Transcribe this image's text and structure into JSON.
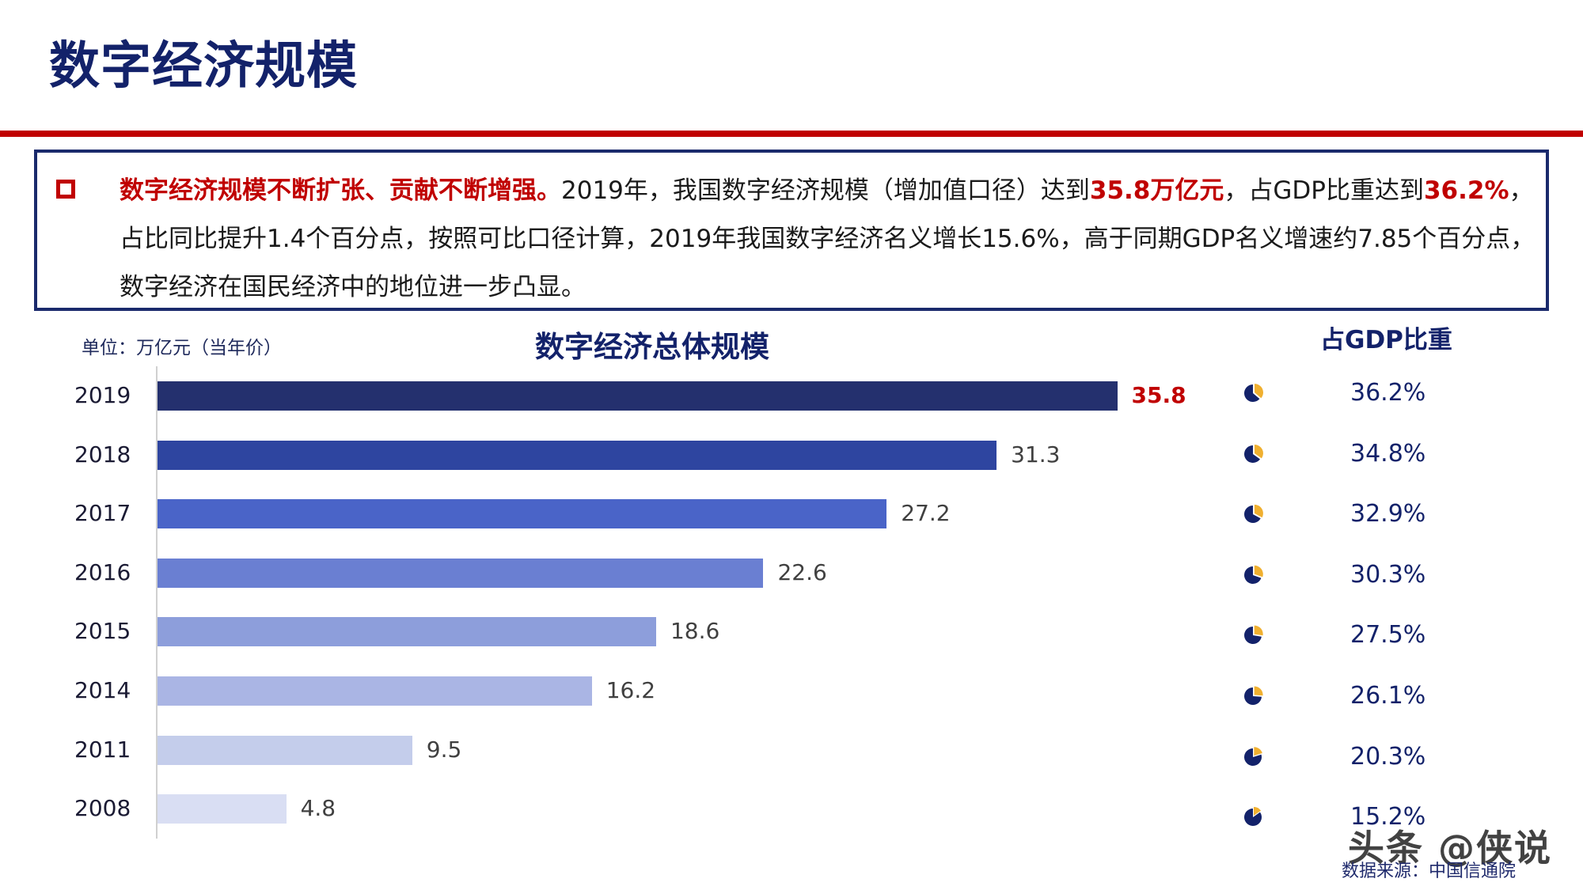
{
  "slide": {
    "title": "数字经济规模",
    "rule_color": "#c00000",
    "accent_navy": "#13226a"
  },
  "summary": {
    "bullet_icon": "hollow-square-bullet",
    "parts": [
      {
        "text": "数字经济规模不断扩张、贡献不断增强。",
        "highlight": true
      },
      {
        "text": "2019年，我国数字经济规模（增加值口径）达到",
        "highlight": false
      },
      {
        "text": "35.8万亿元",
        "highlight": true
      },
      {
        "text": "，占GDP比重达到",
        "highlight": false
      },
      {
        "text": "36.2%",
        "highlight": true
      },
      {
        "text": "，占比同比提升1.4个百分点，按照可比口径计算，2019年我国数字经济名义增长15.6%，高于同期GDP名义增速约7.85个百分点，数字经济在国民经济中的地位进一步凸显。",
        "highlight": false
      }
    ]
  },
  "chart": {
    "unit_label": "单位：万亿元（当年价）",
    "title": "数字经济总体规模",
    "gdp_share_header": "占GDP比重"
  },
  "chart_data": {
    "type": "bar",
    "orientation": "horizontal",
    "title": "数字经济总体规模",
    "xlabel": "",
    "ylabel": "",
    "unit": "单位：万亿元（当年价）",
    "categories": [
      "2019",
      "2018",
      "2017",
      "2016",
      "2015",
      "2014",
      "2011",
      "2008"
    ],
    "values": [
      35.8,
      31.3,
      27.2,
      22.6,
      18.6,
      16.2,
      9.5,
      4.8
    ],
    "value_labels": [
      "35.8",
      "31.3",
      "27.2",
      "22.6",
      "18.6",
      "16.2",
      "9.5",
      "4.8"
    ],
    "bar_colors": [
      "#24306e",
      "#2e45a0",
      "#4a64c8",
      "#6a7fd2",
      "#8d9edb",
      "#aab5e4",
      "#c4cdeb",
      "#d9def3"
    ],
    "highlight_index": 0,
    "highlight_color": "#c00000",
    "xlim": [
      0,
      36
    ],
    "grid": false,
    "legend": null,
    "secondary_series": {
      "name": "占GDP比重",
      "type": "pie-icons",
      "values": [
        36.2,
        34.8,
        32.9,
        30.3,
        27.5,
        26.1,
        20.3,
        15.2
      ],
      "labels": [
        "36.2%",
        "34.8%",
        "32.9%",
        "30.3%",
        "27.5%",
        "26.1%",
        "20.3%",
        "15.2%"
      ],
      "pie_main_color": "#13226a",
      "pie_slice_color": "#f0b030"
    }
  },
  "footer": {
    "source": "数据来源：中国信通院",
    "watermark": "头条 @侠说"
  }
}
